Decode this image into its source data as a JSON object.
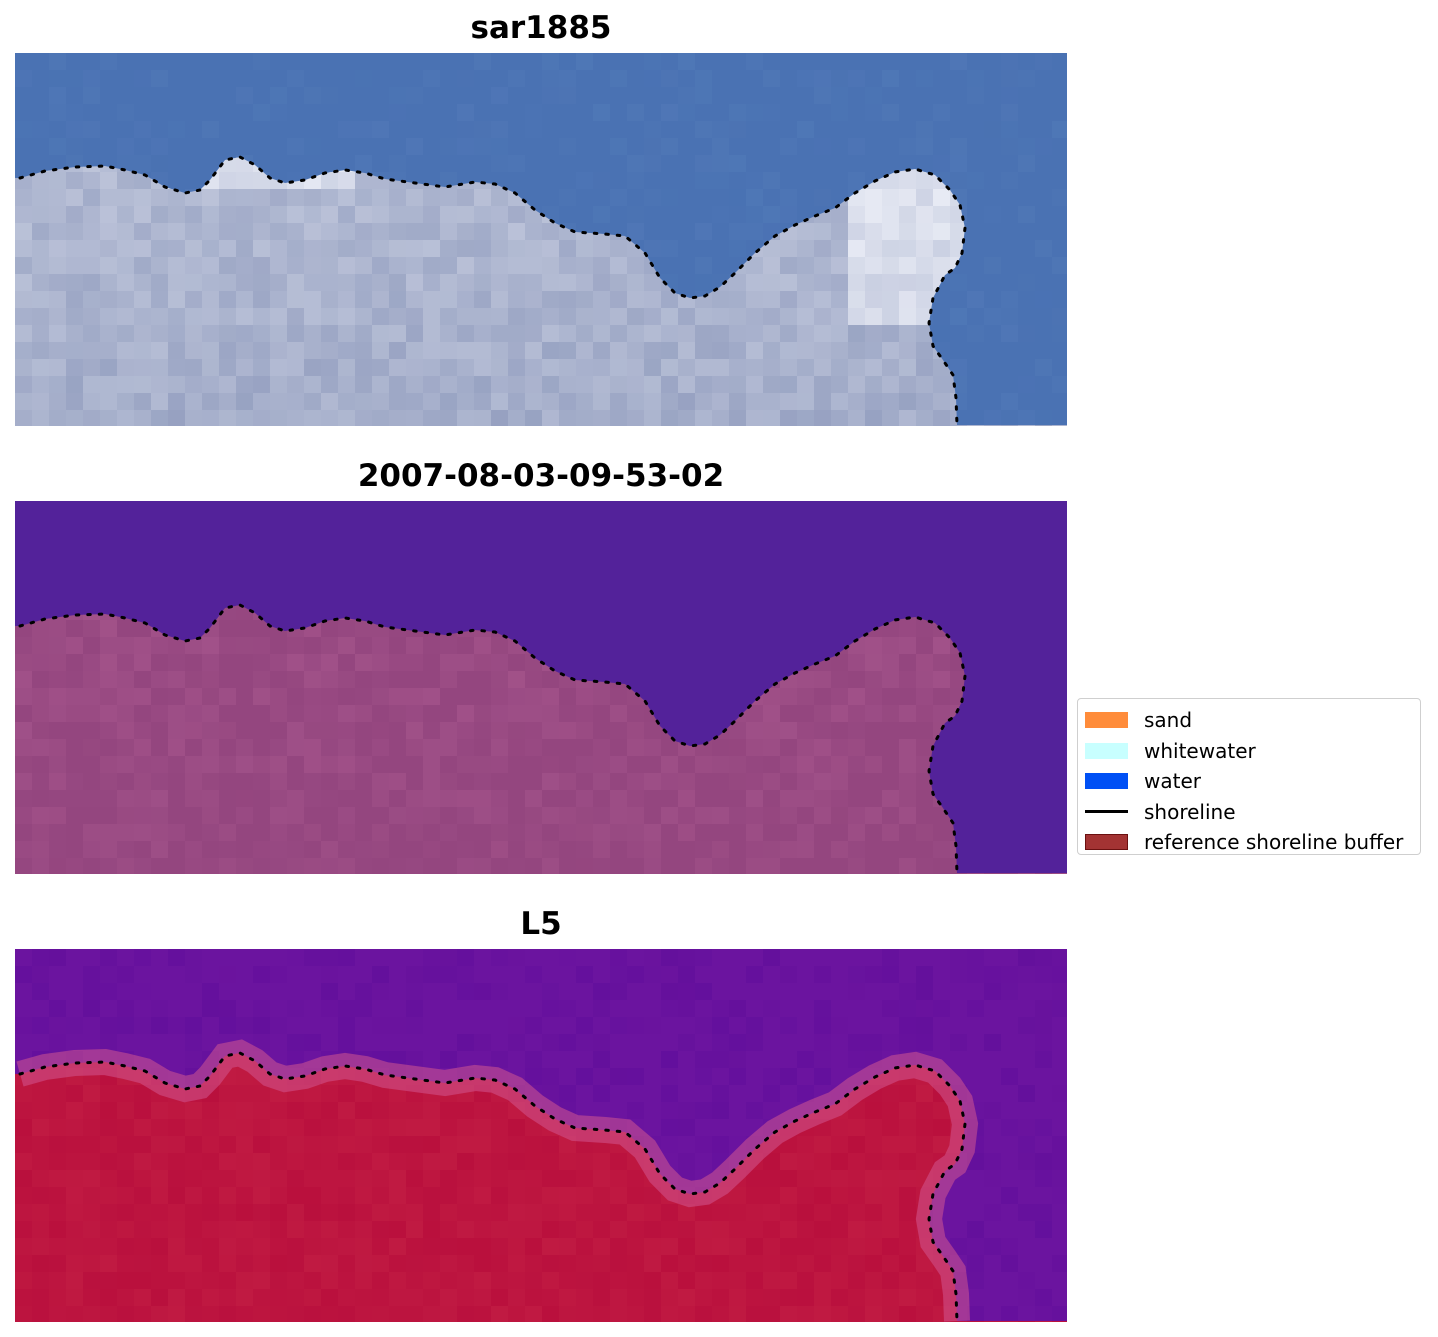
{
  "panels": [
    {
      "title": "sar1885",
      "style": "rgb"
    },
    {
      "title": "2007-08-03-09-53-02",
      "style": "classified"
    },
    {
      "title": "L5",
      "style": "probability"
    }
  ],
  "legend": {
    "items": [
      {
        "label": "sand",
        "color": "#ff8c3a",
        "type": "patch"
      },
      {
        "label": "whitewater",
        "color": "#c8ffff",
        "type": "patch"
      },
      {
        "label": "water",
        "color": "#0050f5",
        "type": "patch"
      },
      {
        "label": "shoreline",
        "color": "#000000",
        "type": "line"
      },
      {
        "label": "reference shoreline buffer",
        "color": "#a33333",
        "type": "buffer"
      }
    ]
  },
  "colors": {
    "rgb_water": "#4a72b3",
    "rgb_land": "#a9b2cd",
    "rgb_bright": "#f2f4fb",
    "class_water": "#53229a",
    "class_land": "#94467f",
    "prob_water": "#6b149f",
    "prob_land": "#c01a42",
    "prob_edge": "#d2568f",
    "shoreline": "#000000"
  }
}
